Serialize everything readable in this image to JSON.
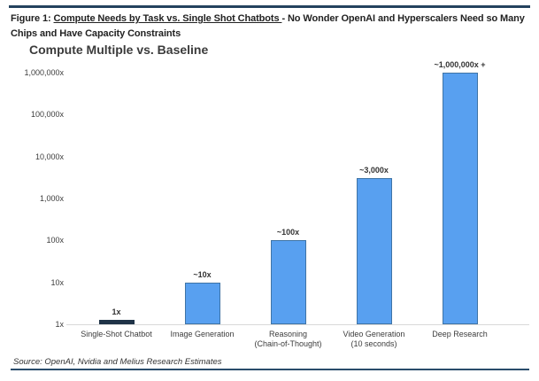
{
  "figure": {
    "caption_prefix": "Figure 1: ",
    "caption_underlined": "Compute Needs by Task vs. Single Shot Chatbots ",
    "caption_rest": "- No Wonder OpenAI and Hyperscalers Need so Many Chips and Have Capacity Constraints",
    "source": "Source: OpenAI, Nvidia and Melius Research Estimates"
  },
  "chart_data": {
    "type": "bar",
    "title": "Compute Multiple vs. Baseline",
    "xlabel": "",
    "ylabel": "",
    "scale": "log",
    "ylim": [
      1,
      1000000
    ],
    "grid": false,
    "legend": false,
    "y_ticks": [
      "1x",
      "10x",
      "100x",
      "1,000x",
      "10,000x",
      "100,000x",
      "1,000,000x"
    ],
    "categories": [
      [
        "Single-Shot Chatbot"
      ],
      [
        "Image Generation"
      ],
      [
        "Reasoning",
        "(Chain-of-Thought)"
      ],
      [
        "Video Generation",
        "(10 seconds)"
      ],
      [
        "Deep Research"
      ]
    ],
    "values": [
      1,
      10,
      100,
      3000,
      1000000
    ],
    "bar_labels": [
      "1x",
      "~10x",
      "~100x",
      "~3,000x",
      "~1,000,000x +"
    ],
    "colors": {
      "bar_fill": "#58a0f0",
      "bar_border": "#3f74a6",
      "baseline_bar_fill": "#1f3347",
      "axis_line": "#d9d9d9",
      "rule": "#24425e"
    }
  }
}
